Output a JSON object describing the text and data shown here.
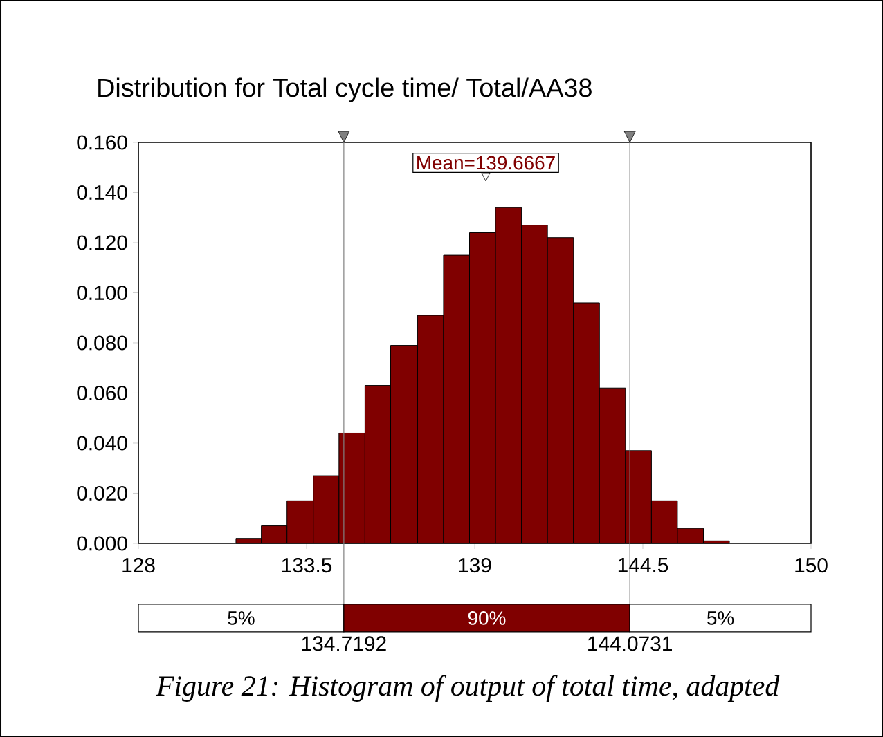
{
  "chart_data": {
    "type": "histogram",
    "title": "Distribution for Total cycle time/ Total/AA38",
    "bins": [
      131.19,
      132.02,
      132.86,
      133.72,
      134.56,
      135.41,
      136.25,
      137.13,
      137.98,
      138.83,
      139.68,
      140.53,
      141.38,
      142.23,
      143.08,
      143.93,
      144.78,
      145.63,
      146.48,
      147.33
    ],
    "values": [
      0.002,
      0.007,
      0.017,
      0.027,
      0.044,
      0.063,
      0.079,
      0.091,
      0.115,
      0.124,
      0.134,
      0.127,
      0.122,
      0.096,
      0.062,
      0.037,
      0.017,
      0.006,
      0.001
    ],
    "color": "#800000",
    "xlim": [
      128,
      150
    ],
    "xticks": [
      128,
      133.5,
      139,
      144.5,
      150
    ],
    "ylim": [
      0,
      0.16
    ],
    "yticks": [
      {
        "value": 0,
        "label": "0.000"
      },
      {
        "value": 0.02,
        "label": "0.020"
      },
      {
        "value": 0.04,
        "label": "0.040"
      },
      {
        "value": 0.06,
        "label": "0.060"
      },
      {
        "value": 0.08,
        "label": "0.080"
      },
      {
        "value": 0.1,
        "label": "0.100"
      },
      {
        "value": 0.12,
        "label": "0.120"
      },
      {
        "value": 0.14,
        "label": "0.140"
      },
      {
        "value": 0.16,
        "label": "0.160"
      }
    ],
    "ref_lines": [
      {
        "axis": "x",
        "value": 134.7192,
        "label": "134.7192",
        "color": "#808080"
      },
      {
        "axis": "x",
        "value": 144.0731,
        "label": "144.0731",
        "color": "#808080"
      }
    ],
    "annotations": [
      "Mean=139.6667",
      "5%",
      "90%",
      "5%",
      "Figure 21: Histogram of output of total time, adapted"
    ]
  }
}
